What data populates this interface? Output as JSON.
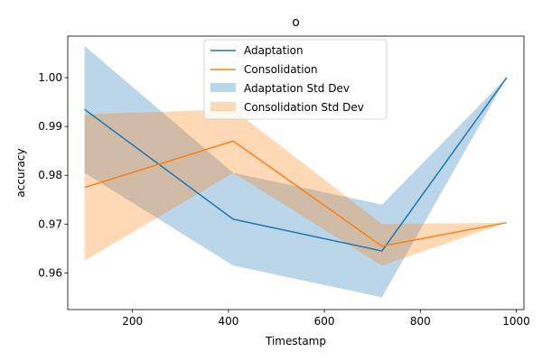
{
  "chart_data": {
    "type": "line",
    "title": "o",
    "xlabel": "Timestamp",
    "ylabel": "accuracy",
    "xlim": [
      65,
      1016
    ],
    "ylim": [
      0.9525,
      1.0085
    ],
    "xticks": [
      200,
      400,
      600,
      800,
      1000
    ],
    "yticks": [
      0.96,
      0.97,
      0.98,
      0.99,
      1.0
    ],
    "xtick_labels": [
      "200",
      "400",
      "600",
      "800",
      "1000"
    ],
    "ytick_labels": [
      "0.96",
      "0.97",
      "0.98",
      "0.99",
      "1.00"
    ],
    "grid": false,
    "legend_position": "upper center",
    "x": [
      100,
      410,
      720,
      980
    ],
    "series": [
      {
        "name": "Adaptation",
        "values": [
          0.9935,
          0.971,
          0.9645,
          1.0
        ],
        "band_name": "Adaptation Std Dev",
        "lower": [
          0.9805,
          0.9615,
          0.955,
          1.0
        ],
        "upper": [
          1.0065,
          0.9805,
          0.974,
          1.0
        ],
        "color": "#1f77b4"
      },
      {
        "name": "Consolidation",
        "values": [
          0.9775,
          0.987,
          0.9655,
          0.9703
        ],
        "band_name": "Consolidation Std Dev",
        "lower": [
          0.9625,
          0.9805,
          0.9615,
          0.9703
        ],
        "upper": [
          0.9925,
          0.9935,
          0.97,
          0.9703
        ],
        "color": "#ff7f0e"
      }
    ]
  }
}
